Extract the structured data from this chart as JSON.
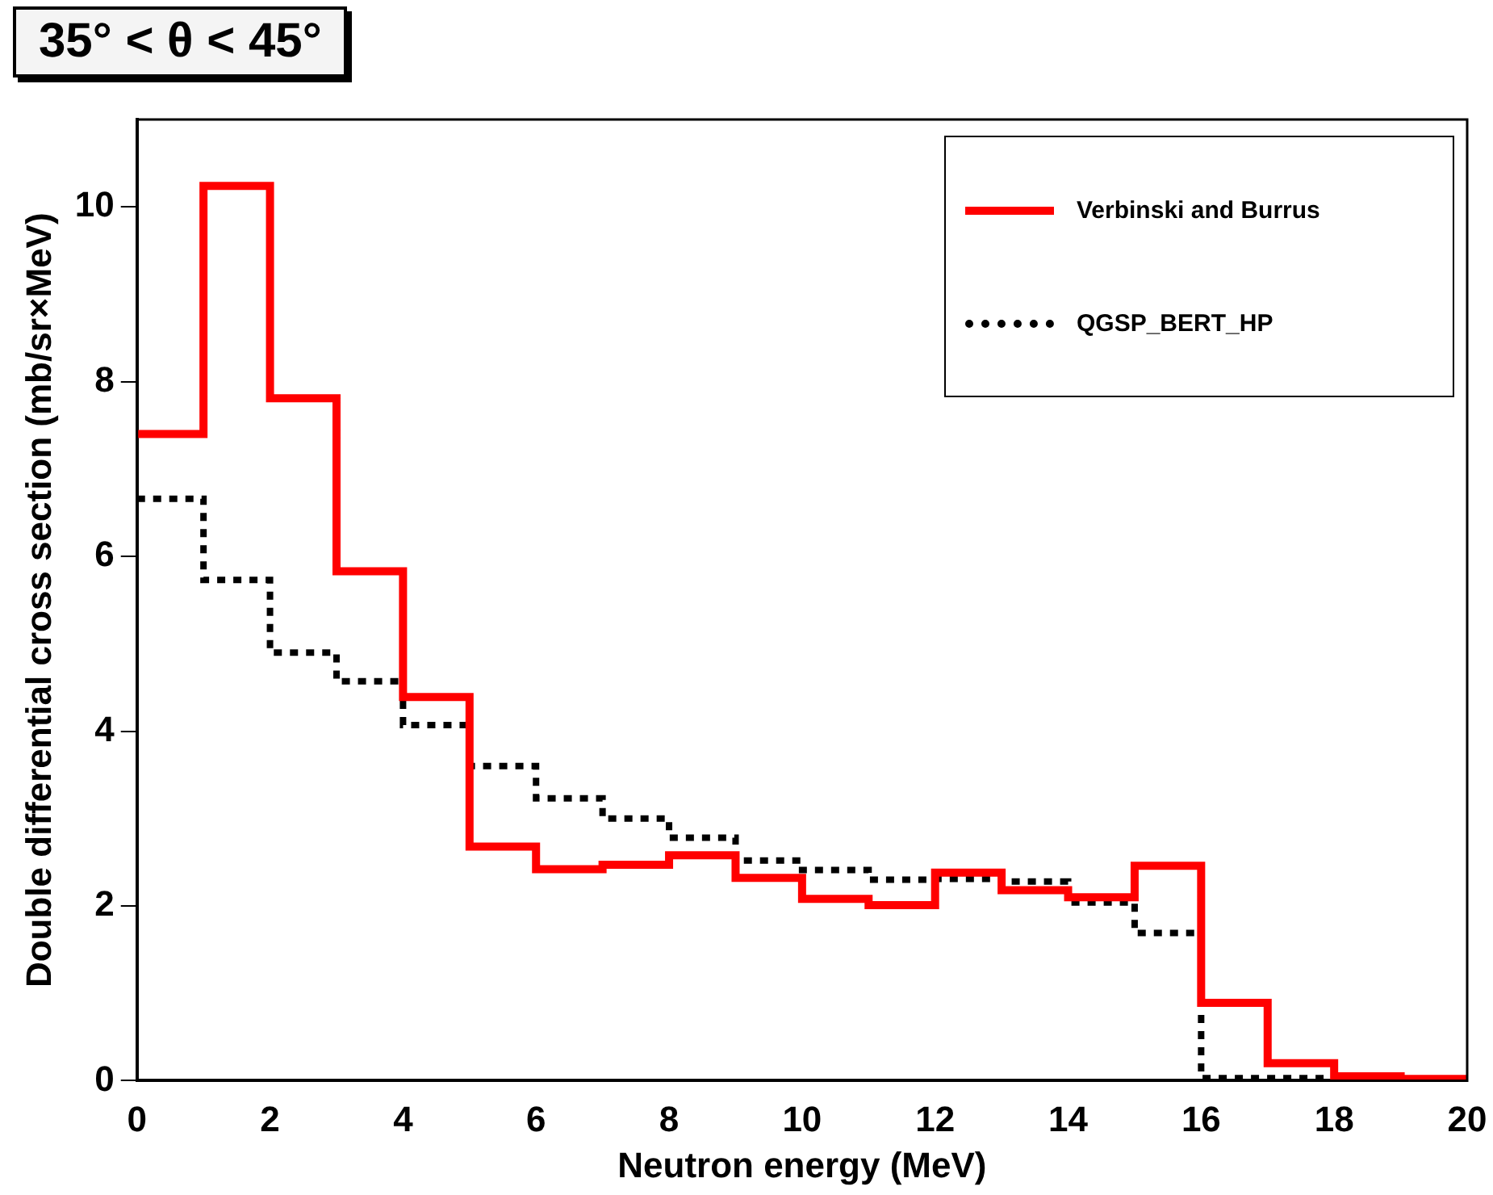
{
  "chart_data": {
    "type": "histogram",
    "title": "35° < θ < 45°",
    "xlabel": "Neutron energy (MeV)",
    "ylabel": "Double differential cross section (mb/sr×MeV)",
    "bins": [
      0,
      1,
      2,
      3,
      4,
      5,
      6,
      7,
      8,
      9,
      10,
      11,
      12,
      13,
      14,
      15,
      16,
      17,
      18,
      19,
      20
    ],
    "series": [
      {
        "name": "Verbinski and Burrus",
        "color": "#ff0000",
        "line_style": "solid",
        "values": [
          7.4,
          10.24,
          7.81,
          5.83,
          4.39,
          2.68,
          2.42,
          2.47,
          2.58,
          2.32,
          2.08,
          2.01,
          2.38,
          2.18,
          2.1,
          2.46,
          0.89,
          0.2,
          0.05,
          0.02
        ]
      },
      {
        "name": "QGSP_BERT_HP",
        "color": "#000000",
        "line_style": "dotted",
        "values": [
          6.66,
          5.73,
          4.9,
          4.57,
          4.07,
          3.6,
          3.23,
          3.0,
          2.78,
          2.52,
          2.41,
          2.3,
          2.31,
          2.28,
          2.04,
          1.69,
          0.03,
          0.03,
          0.02,
          0.01
        ]
      }
    ],
    "xlim": [
      0,
      20
    ],
    "xticks": [
      0,
      2,
      4,
      6,
      8,
      10,
      12,
      14,
      16,
      18,
      20
    ],
    "ylim": [
      0,
      11
    ],
    "yticks": [
      0,
      2,
      4,
      6,
      8,
      10
    ],
    "grid": false,
    "legend": "top right"
  }
}
